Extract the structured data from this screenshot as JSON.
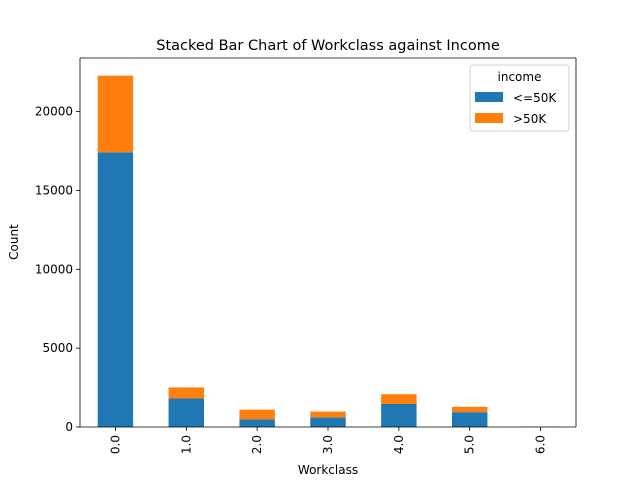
{
  "chart_data": {
    "type": "bar",
    "stacked": true,
    "title": "Stacked Bar Chart of Workclass against Income",
    "xlabel": "Workclass",
    "ylabel": "Count",
    "categories": [
      "0.0",
      "1.0",
      "2.0",
      "3.0",
      "4.0",
      "5.0",
      "6.0"
    ],
    "series": [
      {
        "name": "<=50K",
        "color": "#1f77b4",
        "values": [
          17420,
          1810,
          490,
          610,
          1460,
          940,
          14
        ]
      },
      {
        "name": ">50K",
        "color": "#ff7f0e",
        "values": [
          4860,
          700,
          610,
          370,
          620,
          340,
          0
        ]
      }
    ],
    "ylim": [
      0,
      23400
    ],
    "yticks": [
      0,
      5000,
      10000,
      15000,
      20000
    ],
    "legend": {
      "title": "income",
      "placement": "top-right"
    },
    "grid": false
  }
}
